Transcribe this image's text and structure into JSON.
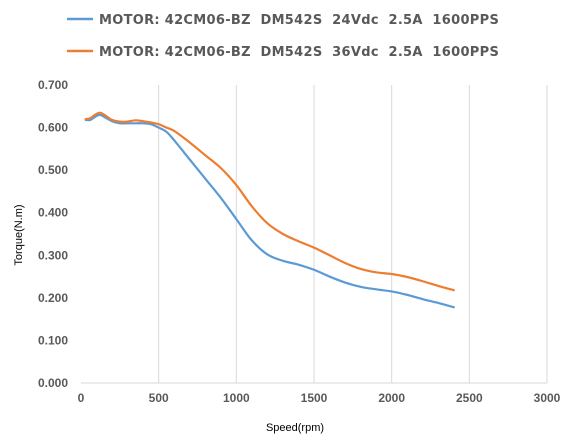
{
  "chart_data": {
    "type": "line",
    "xlabel": "Speed(rpm)",
    "ylabel": "Torque(N.m)",
    "xlim": [
      0,
      3000
    ],
    "ylim": [
      0,
      0.7
    ],
    "x_ticks": [
      "0",
      "500",
      "1000",
      "1500",
      "2000",
      "2500",
      "3000"
    ],
    "y_ticks": [
      "0.000",
      "0.100",
      "0.200",
      "0.300",
      "0.400",
      "0.500",
      "0.600",
      "0.700"
    ],
    "grid": "vertical",
    "legend_position": "top",
    "series": [
      {
        "name": "MOTOR: 42CM06-BZ  DM542S  24Vdc  2.5A  1600PPS",
        "color": "#5b9bd5",
        "x": [
          30,
          60,
          90,
          120,
          150,
          200,
          250,
          300,
          350,
          400,
          450,
          500,
          550,
          600,
          700,
          800,
          900,
          1000,
          1100,
          1200,
          1300,
          1400,
          1500,
          1600,
          1700,
          1800,
          1900,
          2000,
          2100,
          2200,
          2300,
          2400
        ],
        "y": [
          0.618,
          0.618,
          0.625,
          0.63,
          0.625,
          0.615,
          0.61,
          0.61,
          0.61,
          0.61,
          0.608,
          0.6,
          0.59,
          0.57,
          0.525,
          0.48,
          0.435,
          0.385,
          0.335,
          0.302,
          0.287,
          0.278,
          0.266,
          0.25,
          0.236,
          0.226,
          0.22,
          0.215,
          0.207,
          0.197,
          0.188,
          0.178
        ]
      },
      {
        "name": "MOTOR: 42CM06-BZ  DM542S  36Vdc  2.5A  1600PPS",
        "color": "#ed7d31",
        "x": [
          30,
          60,
          90,
          120,
          150,
          200,
          250,
          300,
          350,
          400,
          450,
          500,
          550,
          600,
          700,
          800,
          900,
          1000,
          1100,
          1200,
          1300,
          1400,
          1500,
          1600,
          1700,
          1800,
          1900,
          2000,
          2100,
          2200,
          2300,
          2400
        ],
        "y": [
          0.62,
          0.622,
          0.63,
          0.635,
          0.63,
          0.618,
          0.614,
          0.614,
          0.617,
          0.615,
          0.612,
          0.608,
          0.6,
          0.592,
          0.565,
          0.535,
          0.505,
          0.465,
          0.415,
          0.375,
          0.35,
          0.333,
          0.318,
          0.3,
          0.282,
          0.268,
          0.26,
          0.256,
          0.249,
          0.239,
          0.228,
          0.218
        ]
      }
    ]
  }
}
